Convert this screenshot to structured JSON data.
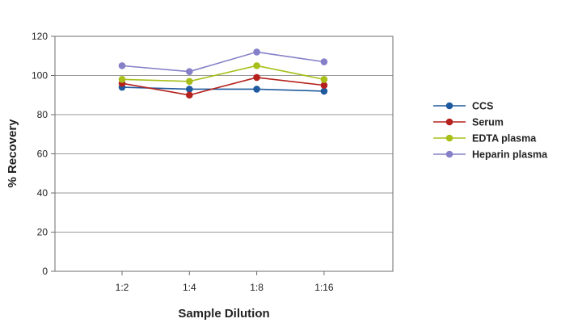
{
  "chart_data": {
    "type": "line",
    "title": "",
    "xlabel": "Sample Dilution",
    "ylabel": "% Recovery",
    "categories": [
      "1:2",
      "1:4",
      "1:8",
      "1:16"
    ],
    "ylim": [
      0,
      120
    ],
    "yticks": [
      0,
      20,
      40,
      60,
      80,
      100,
      120
    ],
    "grid": "horizontal",
    "legend_position": "right",
    "series": [
      {
        "name": "CCS",
        "color": "#1f5a9e",
        "values": [
          94,
          93,
          93,
          92
        ]
      },
      {
        "name": "Serum",
        "color": "#b5221e",
        "values": [
          96,
          90,
          99,
          95
        ]
      },
      {
        "name": "EDTA plasma",
        "color": "#a8bf1a",
        "values": [
          98,
          97,
          105,
          98
        ]
      },
      {
        "name": "Heparin plasma",
        "color": "#8580c8",
        "values": [
          105,
          102,
          112,
          107
        ]
      }
    ]
  }
}
